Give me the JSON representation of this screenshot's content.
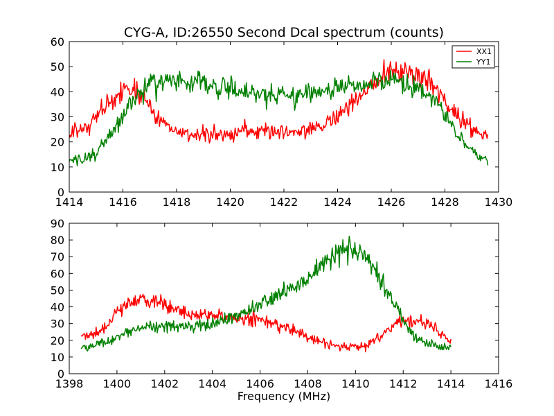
{
  "chart_data": [
    {
      "type": "line",
      "title": "CYG-A, ID:26550 Second Dcal spectrum (counts)",
      "xlabel": "",
      "ylabel": "",
      "xlim": [
        1414,
        1430
      ],
      "ylim": [
        0,
        60
      ],
      "xticks": [
        1414,
        1416,
        1418,
        1420,
        1422,
        1424,
        1426,
        1428,
        1430
      ],
      "yticks": [
        0,
        10,
        20,
        30,
        40,
        50,
        60
      ],
      "legend": "top-right",
      "grid": false,
      "series": [
        {
          "name": "XX1",
          "color": "#ff0000",
          "x": [
            1414.0,
            1414.5,
            1415.0,
            1415.5,
            1416.0,
            1416.5,
            1417.0,
            1417.5,
            1418.0,
            1418.5,
            1419.0,
            1419.5,
            1420.0,
            1420.5,
            1421.0,
            1421.5,
            1422.0,
            1422.5,
            1423.0,
            1423.5,
            1424.0,
            1424.5,
            1425.0,
            1425.5,
            1426.0,
            1426.5,
            1427.0,
            1427.5,
            1428.0,
            1428.5,
            1429.0,
            1429.6
          ],
          "y": [
            23,
            25,
            30,
            35,
            40,
            41,
            34,
            27,
            24,
            23,
            23,
            23,
            23,
            24,
            24,
            24,
            24,
            24,
            25,
            27,
            30,
            35,
            40,
            45,
            47,
            48,
            47,
            43,
            36,
            30,
            25,
            21
          ]
        },
        {
          "name": "YY1",
          "color": "#008000",
          "x": [
            1414.0,
            1414.5,
            1415.0,
            1415.5,
            1416.0,
            1416.5,
            1417.0,
            1417.5,
            1418.0,
            1418.5,
            1419.0,
            1419.5,
            1420.0,
            1420.5,
            1421.0,
            1421.5,
            1422.0,
            1422.5,
            1423.0,
            1423.5,
            1424.0,
            1424.5,
            1425.0,
            1425.5,
            1426.0,
            1426.5,
            1427.0,
            1427.5,
            1428.0,
            1428.5,
            1429.0,
            1429.6
          ],
          "y": [
            12,
            13,
            16,
            22,
            31,
            38,
            43,
            45,
            44,
            43,
            43,
            42,
            41,
            40,
            39,
            38,
            38,
            38,
            39,
            40,
            41,
            42,
            43,
            44,
            44,
            43,
            42,
            38,
            31,
            22,
            16,
            12
          ]
        }
      ]
    },
    {
      "type": "line",
      "title": "",
      "xlabel": "Frequency (MHz)",
      "ylabel": "",
      "xlim": [
        1398,
        1416
      ],
      "ylim": [
        0,
        90
      ],
      "xticks": [
        1398,
        1400,
        1402,
        1404,
        1406,
        1408,
        1410,
        1412,
        1414,
        1416
      ],
      "yticks": [
        0,
        10,
        20,
        30,
        40,
        50,
        60,
        70,
        80,
        90
      ],
      "legend": "none",
      "grid": false,
      "series": [
        {
          "name": "",
          "color": "#ff0000",
          "x": [
            1398.5,
            1399.0,
            1399.5,
            1400.0,
            1400.5,
            1401.0,
            1401.5,
            1402.0,
            1402.5,
            1403.0,
            1403.5,
            1404.0,
            1404.5,
            1405.0,
            1405.5,
            1406.0,
            1406.5,
            1407.0,
            1407.5,
            1408.0,
            1408.5,
            1409.0,
            1409.5,
            1410.0,
            1410.5,
            1411.0,
            1411.5,
            1412.0,
            1412.5,
            1413.0,
            1413.5,
            1414.0
          ],
          "y": [
            22,
            23,
            28,
            36,
            42,
            44,
            44,
            41,
            38,
            36,
            35,
            34,
            34,
            33,
            33,
            32,
            31,
            28,
            25,
            22,
            19,
            17,
            16,
            16,
            17,
            22,
            28,
            32,
            32,
            30,
            25,
            20
          ]
        },
        {
          "name": "",
          "color": "#008000",
          "x": [
            1398.5,
            1399.0,
            1399.5,
            1400.0,
            1400.5,
            1401.0,
            1401.5,
            1402.0,
            1402.5,
            1403.0,
            1403.5,
            1404.0,
            1404.5,
            1405.0,
            1405.5,
            1406.0,
            1406.5,
            1407.0,
            1407.5,
            1408.0,
            1408.5,
            1409.0,
            1409.5,
            1410.0,
            1410.5,
            1411.0,
            1411.5,
            1412.0,
            1412.5,
            1413.0,
            1413.5,
            1414.0
          ],
          "y": [
            15,
            17,
            19,
            22,
            25,
            27,
            28,
            28,
            28,
            28,
            29,
            30,
            32,
            34,
            37,
            41,
            45,
            49,
            53,
            57,
            63,
            70,
            74,
            74,
            68,
            57,
            44,
            32,
            22,
            18,
            16,
            15
          ]
        }
      ]
    }
  ]
}
